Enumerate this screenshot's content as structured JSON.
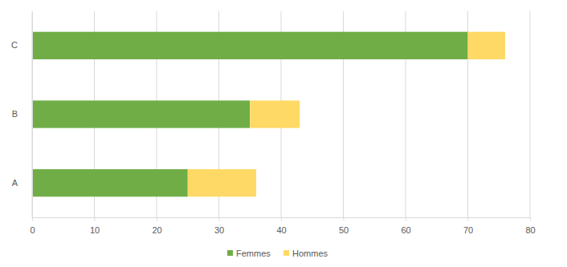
{
  "chart_data": {
    "type": "bar",
    "orientation": "horizontal",
    "stacked": true,
    "grid": true,
    "categories": [
      "A",
      "B",
      "C"
    ],
    "series": [
      {
        "name": "Femmes",
        "color": "#70ad47",
        "values": [
          25,
          35,
          70
        ]
      },
      {
        "name": "Hommes",
        "color": "#ffd966",
        "values": [
          11,
          8,
          6
        ]
      }
    ],
    "xlim": [
      0,
      80
    ],
    "xticks": [
      0,
      10,
      20,
      30,
      40,
      50,
      60,
      70,
      80
    ],
    "legend": "bottom"
  }
}
